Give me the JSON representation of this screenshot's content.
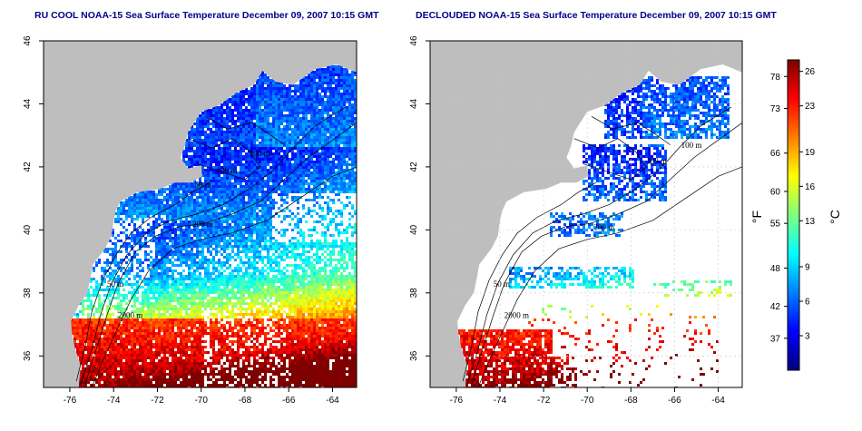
{
  "panels": [
    {
      "title": "RU COOL NOAA-15 Sea Surface Temperature December 09, 2007 10:15 GMT",
      "variant": "all",
      "contours": [
        {
          "label": "100 m",
          "at": [
            -67.8,
            42.35
          ]
        },
        {
          "label": "100 m",
          "at": [
            -69.3,
            41.8
          ]
        },
        {
          "label": "50 m",
          "at": [
            -70.3,
            41.35
          ]
        },
        {
          "label": "200 m",
          "at": [
            -70.4,
            40.1
          ]
        },
        {
          "label": "50 m",
          "at": [
            -74.3,
            38.2
          ]
        },
        {
          "label": "2000 m",
          "at": [
            -73.8,
            37.2
          ]
        }
      ]
    },
    {
      "title": "DECLOUDED NOAA-15 Sea Surface Temperature December 09, 2007 10:15 GMT",
      "variant": "declouded",
      "contours": [
        {
          "label": "100 m",
          "at": [
            -65.7,
            42.6
          ]
        },
        {
          "label": "100 m",
          "at": [
            -67.3,
            42.1
          ]
        },
        {
          "label": "200 m",
          "at": [
            -69.7,
            40.0
          ]
        },
        {
          "label": "50 m",
          "at": [
            -74.3,
            38.2
          ]
        },
        {
          "label": "2000 m",
          "at": [
            -73.8,
            37.2
          ]
        }
      ]
    }
  ],
  "axes": {
    "lon_ticks": [
      -76,
      -74,
      -72,
      -70,
      -68,
      -66,
      -64
    ],
    "lat_ticks": [
      36,
      38,
      40,
      42,
      44,
      46
    ],
    "lon_range": [
      -77.2,
      -62.9
    ],
    "lat_range": [
      35.0,
      46.0
    ]
  },
  "colorbar": {
    "fahrenheit_label": "°F",
    "celsius_label": "°C",
    "fahrenheit_ticks": [
      78,
      73,
      66,
      60,
      55,
      48,
      42,
      37
    ],
    "celsius_ticks": [
      26,
      23,
      19,
      16,
      13,
      9,
      6,
      3
    ],
    "range_c": [
      0,
      27
    ],
    "colors": [
      "#00007f",
      "#0000ff",
      "#007fff",
      "#00ffff",
      "#7fff7f",
      "#ffff00",
      "#ff7f00",
      "#ff0000",
      "#7f0000"
    ]
  },
  "colors": {
    "land": "#bebebe",
    "cloud": "#ffffff",
    "contour": "#000000",
    "title": "#00008b",
    "grid": "#c8c8c8"
  }
}
